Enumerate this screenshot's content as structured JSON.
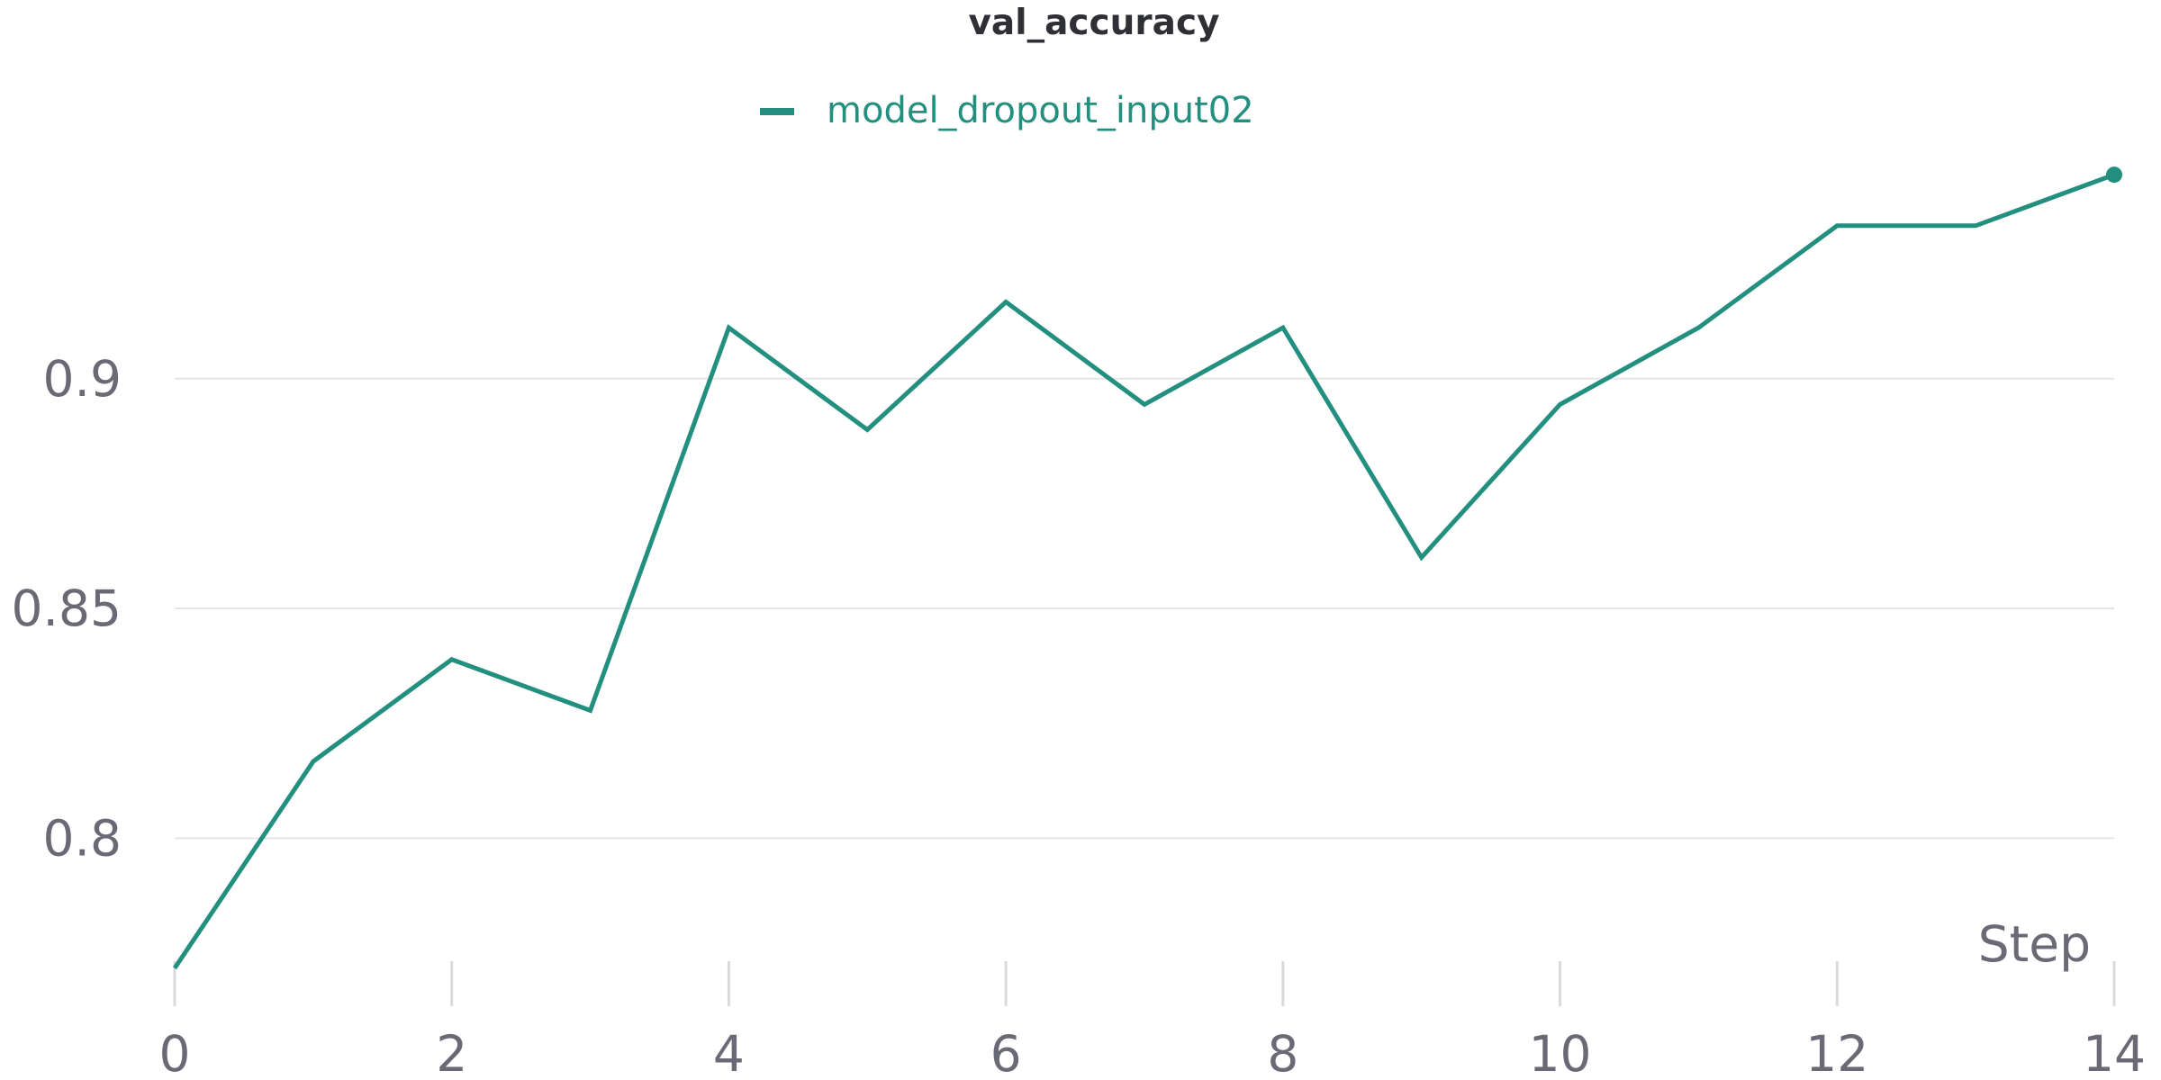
{
  "chart_data": {
    "type": "line",
    "title": "val_accuracy",
    "xlabel": "Step",
    "ylabel": "",
    "x": [
      0,
      1,
      2,
      3,
      4,
      5,
      6,
      7,
      8,
      9,
      10,
      11,
      12,
      13,
      14
    ],
    "series": [
      {
        "name": "model_dropout_input02",
        "color": "#23907f",
        "values": [
          0.7717,
          0.8167,
          0.8389,
          0.8278,
          0.9111,
          0.8889,
          0.9167,
          0.8944,
          0.9111,
          0.8611,
          0.8944,
          0.9111,
          0.9333,
          0.9333,
          0.9444
        ]
      }
    ],
    "x_ticks": [
      0,
      2,
      4,
      6,
      8,
      10,
      12,
      14
    ],
    "x_tick_labels": [
      "0",
      "2",
      "4",
      "6",
      "8",
      "10",
      "12",
      "14"
    ],
    "y_ticks": [
      0.8,
      0.85,
      0.9
    ],
    "y_tick_labels": [
      "0.8",
      "0.85",
      "0.9"
    ],
    "xlim": [
      0,
      14
    ],
    "ylim": [
      0.765,
      0.955
    ],
    "grid": true,
    "legend_position": "top-center"
  }
}
